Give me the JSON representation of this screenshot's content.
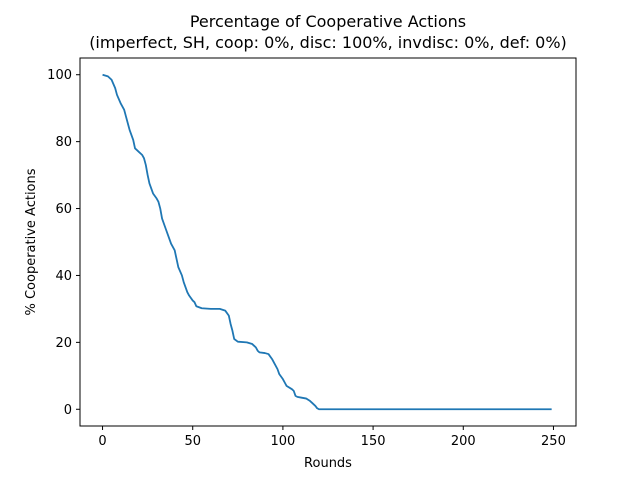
{
  "chart_data": {
    "type": "line",
    "title": "Percentage of Cooperative Actions",
    "subtitle": "(imperfect, SH, coop: 0%, disc: 100%, invdisc: 0%, def: 0%)",
    "xlabel": "Rounds",
    "ylabel": "% Cooperative Actions",
    "xlim": [
      -12.5,
      262.5
    ],
    "ylim": [
      -5,
      105
    ],
    "xticks": [
      0,
      50,
      100,
      150,
      200,
      250
    ],
    "yticks": [
      0,
      20,
      40,
      60,
      80,
      100
    ],
    "grid": false,
    "line_color": "#1f77b4",
    "series": [
      {
        "points": [
          [
            0,
            100
          ],
          [
            3,
            99.5
          ],
          [
            5,
            98.5
          ],
          [
            7,
            96
          ],
          [
            8,
            94
          ],
          [
            10,
            91.5
          ],
          [
            12,
            89.5
          ],
          [
            13,
            87.5
          ],
          [
            15,
            83.5
          ],
          [
            17,
            80.5
          ],
          [
            18,
            78
          ],
          [
            20,
            77
          ],
          [
            22,
            76
          ],
          [
            23,
            75
          ],
          [
            24,
            73
          ],
          [
            25,
            70
          ],
          [
            26,
            67.5
          ],
          [
            28,
            64.5
          ],
          [
            30,
            63
          ],
          [
            31,
            62
          ],
          [
            32,
            60
          ],
          [
            33,
            57
          ],
          [
            35,
            54
          ],
          [
            37,
            51
          ],
          [
            38,
            49.5
          ],
          [
            40,
            47.5
          ],
          [
            41,
            45
          ],
          [
            42,
            42.5
          ],
          [
            44,
            40
          ],
          [
            45,
            38
          ],
          [
            47,
            35
          ],
          [
            48,
            34
          ],
          [
            50,
            32.5
          ],
          [
            51,
            32
          ],
          [
            52,
            30.8
          ],
          [
            55,
            30.2
          ],
          [
            60,
            30
          ],
          [
            65,
            30
          ],
          [
            68,
            29.5
          ],
          [
            70,
            28
          ],
          [
            71,
            25.5
          ],
          [
            72,
            23.5
          ],
          [
            73,
            21
          ],
          [
            75,
            20.2
          ],
          [
            80,
            20
          ],
          [
            83,
            19.5
          ],
          [
            85,
            18.5
          ],
          [
            86,
            17.5
          ],
          [
            87,
            17
          ],
          [
            90,
            16.8
          ],
          [
            92,
            16.5
          ],
          [
            94,
            15
          ],
          [
            95,
            14
          ],
          [
            97,
            12
          ],
          [
            98,
            10.5
          ],
          [
            100,
            9
          ],
          [
            101,
            8
          ],
          [
            102,
            7
          ],
          [
            105,
            6
          ],
          [
            106,
            5.5
          ],
          [
            107,
            4
          ],
          [
            108,
            3.7
          ],
          [
            110,
            3.5
          ],
          [
            113,
            3.2
          ],
          [
            115,
            2.5
          ],
          [
            116,
            2
          ],
          [
            118,
            1
          ],
          [
            119,
            0.3
          ],
          [
            120,
            0
          ],
          [
            125,
            0
          ],
          [
            150,
            0
          ],
          [
            200,
            0
          ],
          [
            249,
            0
          ]
        ]
      }
    ]
  }
}
